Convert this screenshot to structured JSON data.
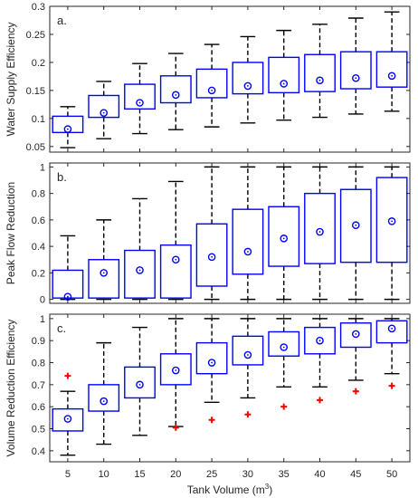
{
  "chart_data": [
    {
      "type": "box",
      "panel_label": "a.",
      "ylabel": "Water Supply Efficiency",
      "ylim": [
        0.04,
        0.3
      ],
      "yticks": [
        0.05,
        0.1,
        0.15,
        0.2,
        0.25,
        0.3
      ],
      "ytick_labels": [
        "0.05",
        "0.1",
        "0.15",
        "0.2",
        "0.25",
        "0.3"
      ],
      "categories": [
        "5",
        "10",
        "15",
        "20",
        "25",
        "30",
        "35",
        "40",
        "45",
        "50"
      ],
      "boxes": [
        {
          "whisker_low": 0.048,
          "q1": 0.075,
          "median": 0.081,
          "q3": 0.104,
          "whisker_high": 0.121,
          "outliers": []
        },
        {
          "whisker_low": 0.064,
          "q1": 0.102,
          "median": 0.11,
          "q3": 0.141,
          "whisker_high": 0.166,
          "outliers": []
        },
        {
          "whisker_low": 0.073,
          "q1": 0.117,
          "median": 0.128,
          "q3": 0.161,
          "whisker_high": 0.198,
          "outliers": []
        },
        {
          "whisker_low": 0.08,
          "q1": 0.128,
          "median": 0.142,
          "q3": 0.176,
          "whisker_high": 0.216,
          "outliers": []
        },
        {
          "whisker_low": 0.085,
          "q1": 0.137,
          "median": 0.15,
          "q3": 0.188,
          "whisker_high": 0.232,
          "outliers": []
        },
        {
          "whisker_low": 0.092,
          "q1": 0.144,
          "median": 0.158,
          "q3": 0.2,
          "whisker_high": 0.246,
          "outliers": []
        },
        {
          "whisker_low": 0.097,
          "q1": 0.146,
          "median": 0.162,
          "q3": 0.209,
          "whisker_high": 0.257,
          "outliers": []
        },
        {
          "whisker_low": 0.102,
          "q1": 0.148,
          "median": 0.168,
          "q3": 0.214,
          "whisker_high": 0.268,
          "outliers": []
        },
        {
          "whisker_low": 0.108,
          "q1": 0.153,
          "median": 0.172,
          "q3": 0.219,
          "whisker_high": 0.279,
          "outliers": []
        },
        {
          "whisker_low": 0.113,
          "q1": 0.156,
          "median": 0.176,
          "q3": 0.219,
          "whisker_high": 0.29,
          "outliers": []
        }
      ]
    },
    {
      "type": "box",
      "panel_label": "b.",
      "ylabel": "Peak Flow Reduction",
      "ylim": [
        -0.03,
        1.03
      ],
      "yticks": [
        0,
        0.2,
        0.4,
        0.6,
        0.8,
        1
      ],
      "ytick_labels": [
        "0",
        "0.2",
        "0.4",
        "0.6",
        "0.8",
        "1"
      ],
      "categories": [
        "5",
        "10",
        "15",
        "20",
        "25",
        "30",
        "35",
        "40",
        "45",
        "50"
      ],
      "boxes": [
        {
          "whisker_low": 0.0,
          "q1": 0.01,
          "median": 0.02,
          "q3": 0.22,
          "whisker_high": 0.48,
          "outliers": []
        },
        {
          "whisker_low": 0.0,
          "q1": 0.01,
          "median": 0.2,
          "q3": 0.3,
          "whisker_high": 0.6,
          "outliers": []
        },
        {
          "whisker_low": 0.0,
          "q1": 0.01,
          "median": 0.22,
          "q3": 0.37,
          "whisker_high": 0.76,
          "outliers": []
        },
        {
          "whisker_low": 0.0,
          "q1": 0.01,
          "median": 0.3,
          "q3": 0.41,
          "whisker_high": 0.89,
          "outliers": []
        },
        {
          "whisker_low": 0.0,
          "q1": 0.1,
          "median": 0.32,
          "q3": 0.57,
          "whisker_high": 1.0,
          "outliers": []
        },
        {
          "whisker_low": 0.0,
          "q1": 0.19,
          "median": 0.36,
          "q3": 0.68,
          "whisker_high": 1.0,
          "outliers": []
        },
        {
          "whisker_low": 0.0,
          "q1": 0.25,
          "median": 0.46,
          "q3": 0.7,
          "whisker_high": 1.0,
          "outliers": []
        },
        {
          "whisker_low": 0.0,
          "q1": 0.27,
          "median": 0.51,
          "q3": 0.8,
          "whisker_high": 1.0,
          "outliers": []
        },
        {
          "whisker_low": 0.0,
          "q1": 0.28,
          "median": 0.56,
          "q3": 0.83,
          "whisker_high": 1.0,
          "outliers": []
        },
        {
          "whisker_low": 0.0,
          "q1": 0.28,
          "median": 0.59,
          "q3": 0.92,
          "whisker_high": 1.0,
          "outliers": []
        }
      ]
    },
    {
      "type": "box",
      "panel_label": "c.",
      "ylabel": "Volume Reduction Efficiency",
      "xlabel": "Tank Volume (m",
      "xlabel_sup": "3",
      "xlabel_end": ")",
      "ylim": [
        0.35,
        1.02
      ],
      "yticks": [
        0.4,
        0.5,
        0.6,
        0.7,
        0.8,
        0.9,
        1
      ],
      "ytick_labels": [
        "0.4",
        "0.5",
        "0.6",
        "0.7",
        "0.8",
        "0.9",
        "1"
      ],
      "categories": [
        "5",
        "10",
        "15",
        "20",
        "25",
        "30",
        "35",
        "40",
        "45",
        "50"
      ],
      "boxes": [
        {
          "whisker_low": 0.38,
          "q1": 0.49,
          "median": 0.545,
          "q3": 0.59,
          "whisker_high": 0.67,
          "outliers": [
            0.74
          ]
        },
        {
          "whisker_low": 0.43,
          "q1": 0.58,
          "median": 0.625,
          "q3": 0.7,
          "whisker_high": 0.89,
          "outliers": []
        },
        {
          "whisker_low": 0.47,
          "q1": 0.64,
          "median": 0.7,
          "q3": 0.78,
          "whisker_high": 0.96,
          "outliers": []
        },
        {
          "whisker_low": 0.51,
          "q1": 0.7,
          "median": 0.765,
          "q3": 0.84,
          "whisker_high": 1.0,
          "outliers": [
            0.505
          ]
        },
        {
          "whisker_low": 0.62,
          "q1": 0.75,
          "median": 0.8,
          "q3": 0.89,
          "whisker_high": 1.0,
          "outliers": [
            0.54
          ]
        },
        {
          "whisker_low": 0.64,
          "q1": 0.79,
          "median": 0.835,
          "q3": 0.92,
          "whisker_high": 1.0,
          "outliers": [
            0.565
          ]
        },
        {
          "whisker_low": 0.69,
          "q1": 0.83,
          "median": 0.87,
          "q3": 0.94,
          "whisker_high": 1.0,
          "outliers": [
            0.6
          ]
        },
        {
          "whisker_low": 0.69,
          "q1": 0.84,
          "median": 0.9,
          "q3": 0.96,
          "whisker_high": 1.0,
          "outliers": [
            0.63
          ]
        },
        {
          "whisker_low": 0.72,
          "q1": 0.87,
          "median": 0.93,
          "q3": 0.98,
          "whisker_high": 1.0,
          "outliers": [
            0.67
          ]
        },
        {
          "whisker_low": 0.75,
          "q1": 0.89,
          "median": 0.955,
          "q3": 0.99,
          "whisker_high": 1.0,
          "outliers": [
            0.695
          ]
        }
      ]
    }
  ],
  "colors": {
    "box": "#0000ff",
    "whisker": "#000000",
    "outlier": "#ff0000",
    "axes": "#262626",
    "background": "#ffffff"
  }
}
